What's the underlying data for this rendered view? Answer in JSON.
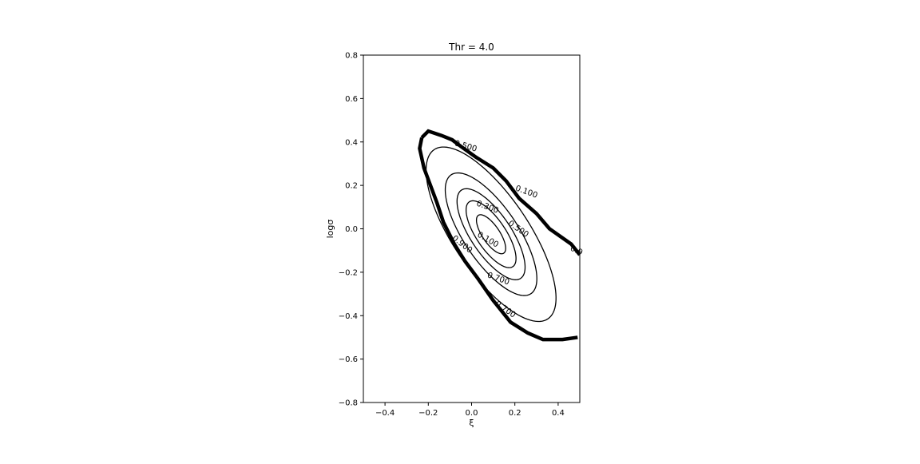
{
  "chart_data": {
    "type": "contour",
    "title": "Thr = 4.0",
    "xlabel": "ξ",
    "ylabel": "logσ",
    "xlim": [
      -0.5,
      0.5
    ],
    "ylim": [
      -0.8,
      0.8
    ],
    "x_ticks": [
      -0.4,
      -0.2,
      0.0,
      0.2,
      0.4
    ],
    "x_tick_labels": [
      "−0.4",
      "−0.2",
      "0.0",
      "0.2",
      "0.4"
    ],
    "y_ticks": [
      -0.8,
      -0.6,
      -0.4,
      -0.2,
      0.0,
      0.2,
      0.4,
      0.6,
      0.8
    ],
    "y_tick_labels": [
      "−0.8",
      "−0.6",
      "−0.4",
      "−0.2",
      "0.0",
      "0.2",
      "0.4",
      "0.6",
      "0.8"
    ],
    "grid": false,
    "contours": [
      {
        "level": 0.1,
        "label": "0.100",
        "kind": "ellipse",
        "center": [
          0.09,
          -0.025
        ],
        "semi_axes": [
          0.105,
          0.04
        ],
        "angle_deg": -56
      },
      {
        "level": 0.3,
        "label": "0.300",
        "kind": "ellipse",
        "center": [
          0.09,
          -0.025
        ],
        "semi_axes": [
          0.18,
          0.068
        ],
        "angle_deg": -56
      },
      {
        "level": 0.5,
        "label": "0.500",
        "kind": "ellipse",
        "center": [
          0.09,
          -0.025
        ],
        "semi_axes": [
          0.245,
          0.093
        ],
        "angle_deg": -56
      },
      {
        "level": 0.7,
        "label": "0.700",
        "kind": "ellipse",
        "center": [
          0.09,
          -0.025
        ],
        "semi_axes": [
          0.33,
          0.125
        ],
        "angle_deg": -56
      },
      {
        "level": 0.9,
        "label": "0.900",
        "kind": "ellipse",
        "center": [
          0.09,
          -0.025
        ],
        "semi_axes": [
          0.47,
          0.175
        ],
        "angle_deg": -56
      },
      {
        "level": 1.0,
        "label": "",
        "kind": "boundary",
        "points": [
          [
            -0.23,
            0.42
          ],
          [
            -0.2,
            0.45
          ],
          [
            -0.14,
            0.43
          ],
          [
            -0.09,
            0.41
          ],
          [
            -0.05,
            0.38
          ],
          [
            0.02,
            0.33
          ],
          [
            0.1,
            0.28
          ],
          [
            0.16,
            0.22
          ],
          [
            0.22,
            0.14
          ],
          [
            0.3,
            0.07
          ],
          [
            0.36,
            0.0
          ],
          [
            0.46,
            -0.07
          ],
          [
            0.5,
            -0.12
          ]
        ]
      },
      {
        "level": 1.0,
        "label": "",
        "kind": "boundary",
        "points": [
          [
            -0.23,
            0.42
          ],
          [
            -0.24,
            0.37
          ],
          [
            -0.22,
            0.28
          ],
          [
            -0.19,
            0.2
          ],
          [
            -0.16,
            0.12
          ],
          [
            -0.13,
            0.03
          ],
          [
            -0.08,
            -0.07
          ],
          [
            -0.03,
            -0.15
          ],
          [
            0.03,
            -0.23
          ],
          [
            0.1,
            -0.33
          ],
          [
            0.18,
            -0.43
          ],
          [
            0.26,
            -0.48
          ],
          [
            0.33,
            -0.51
          ],
          [
            0.42,
            -0.51
          ],
          [
            0.49,
            -0.5
          ]
        ]
      }
    ],
    "contour_labels": [
      {
        "text": "0.500",
        "x": -0.03,
        "y": 0.37,
        "angle": 16
      },
      {
        "text": "0.100",
        "x": 0.25,
        "y": 0.16,
        "angle": 20
      },
      {
        "text": "0.300",
        "x": 0.07,
        "y": 0.09,
        "angle": 20
      },
      {
        "text": "0.500",
        "x": 0.21,
        "y": -0.01,
        "angle": 35
      },
      {
        "text": "0.100",
        "x": 0.07,
        "y": -0.06,
        "angle": 30
      },
      {
        "text": "0.900",
        "x": -0.05,
        "y": -0.08,
        "angle": 38
      },
      {
        "text": "0.700",
        "x": 0.12,
        "y": -0.24,
        "angle": 20
      },
      {
        "text": "0.700",
        "x": 0.15,
        "y": -0.38,
        "angle": 35
      },
      {
        "text": "0.9",
        "x": 0.48,
        "y": -0.11,
        "angle": 25
      }
    ]
  }
}
